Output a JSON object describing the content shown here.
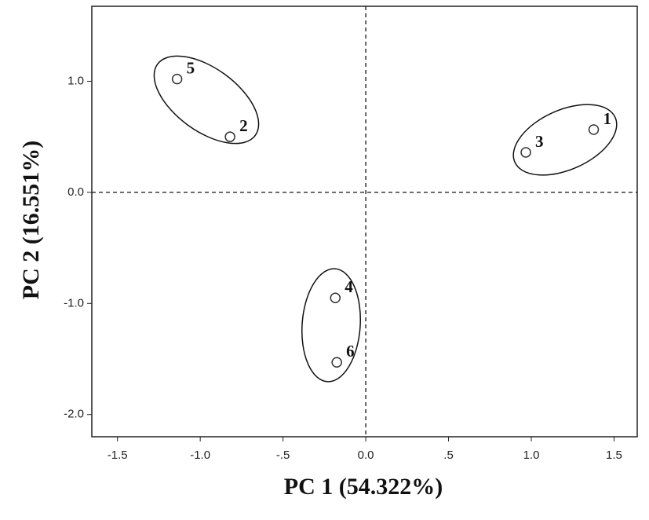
{
  "chart_data": {
    "type": "scatter",
    "x_label": "PC 1 (54.322%)",
    "y_label": "PC 2 (16.551%)",
    "x": [
      1.377,
      -0.82,
      0.967,
      -0.184,
      -1.14,
      -0.175
    ],
    "values": [
      0.565,
      0.5,
      0.36,
      -0.95,
      1.02,
      -1.53
    ],
    "labels": [
      "1",
      "2",
      "3",
      "4",
      "5",
      "6"
    ],
    "xlim": [
      -1.655,
      1.64
    ],
    "ylim": [
      -2.2,
      1.675
    ],
    "xticks": [
      -1.5,
      {
        "value": -1.0,
        "label": "-1.0"
      },
      {
        "value": -0.5,
        "label": "-.5"
      },
      {
        "value": 0,
        "label": "0.0"
      },
      {
        "value": 0.5,
        "label": ".5"
      },
      {
        "value": 1.0,
        "label": "1.0"
      },
      1.5
    ],
    "yticks": [
      {
        "value": 1.0,
        "label": "1.0"
      },
      {
        "value": 0,
        "label": "0.0"
      },
      {
        "value": -1.0,
        "label": "-1.0"
      },
      {
        "value": -2.0,
        "label": "-2.0"
      }
    ],
    "grid": false
  }
}
